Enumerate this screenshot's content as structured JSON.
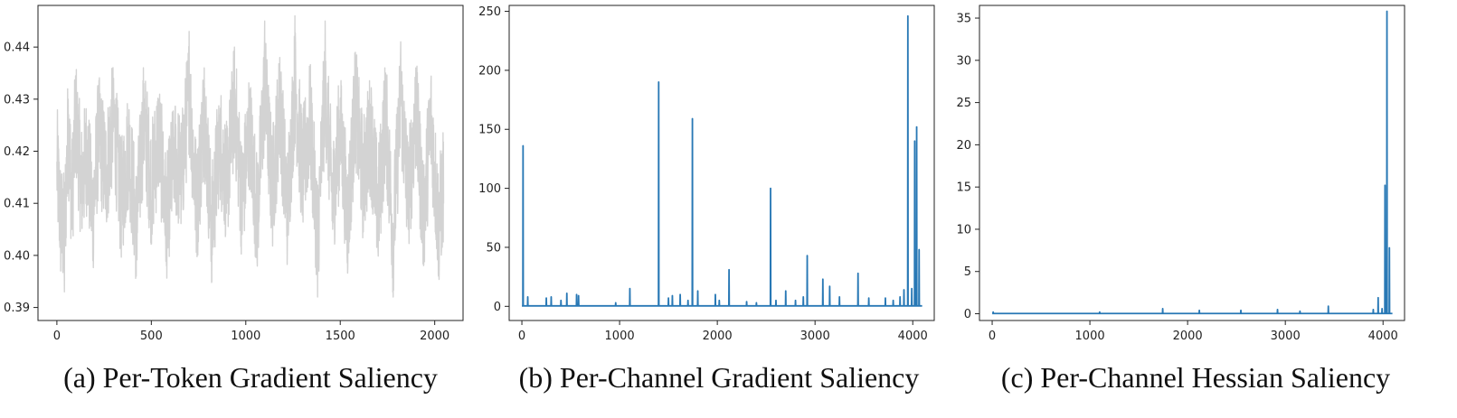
{
  "chart_data": [
    {
      "type": "line",
      "caption": "(a) Per-Token Gradient Saliency",
      "line_color": "#d3d3d3",
      "xlim": [
        -100,
        2150
      ],
      "ylim": [
        0.3875,
        0.448
      ],
      "xticks": [
        0,
        500,
        1000,
        1500,
        2000
      ],
      "yticks": [
        0.39,
        0.4,
        0.41,
        0.42,
        0.43,
        0.44
      ],
      "ytick_labels": [
        "0.39",
        "0.40",
        "0.41",
        "0.42",
        "0.43",
        "0.44"
      ],
      "series": [
        {
          "x_start": 0,
          "x_end": 2048,
          "noise": true,
          "x": [
            0,
            20,
            40,
            60,
            80,
            100,
            130,
            160,
            190,
            220,
            260,
            300,
            340,
            380,
            420,
            460,
            500,
            540,
            580,
            620,
            660,
            700,
            740,
            780,
            820,
            860,
            900,
            940,
            980,
            1020,
            1060,
            1100,
            1140,
            1180,
            1220,
            1260,
            1300,
            1340,
            1380,
            1420,
            1460,
            1500,
            1540,
            1580,
            1620,
            1660,
            1700,
            1740,
            1780,
            1820,
            1860,
            1900,
            1940,
            1980,
            2020,
            2047
          ],
          "values": [
            0.418,
            0.397,
            0.393,
            0.43,
            0.405,
            0.434,
            0.41,
            0.422,
            0.399,
            0.428,
            0.414,
            0.434,
            0.404,
            0.424,
            0.396,
            0.433,
            0.41,
            0.428,
            0.398,
            0.421,
            0.413,
            0.443,
            0.402,
            0.436,
            0.395,
            0.427,
            0.41,
            0.44,
            0.404,
            0.431,
            0.399,
            0.445,
            0.408,
            0.438,
            0.402,
            0.446,
            0.414,
            0.433,
            0.392,
            0.445,
            0.405,
            0.43,
            0.398,
            0.439,
            0.412,
            0.429,
            0.401,
            0.435,
            0.392,
            0.441,
            0.405,
            0.436,
            0.399,
            0.433,
            0.396,
            0.41
          ]
        }
      ]
    },
    {
      "type": "line",
      "caption": "(b) Per-Channel Gradient Saliency",
      "line_color": "#2878b5",
      "xlim": [
        -130,
        4220
      ],
      "ylim": [
        -12,
        255
      ],
      "xticks": [
        0,
        1000,
        2000,
        3000,
        4000
      ],
      "yticks": [
        0,
        50,
        100,
        150,
        200,
        250
      ],
      "ytick_labels": [
        "0",
        "50",
        "100",
        "150",
        "200",
        "250"
      ],
      "series": [
        {
          "x_start": 0,
          "x_end": 4096,
          "baseline": 0.4,
          "spikes": [
            [
              12,
              136
            ],
            [
              60,
              8
            ],
            [
              250,
              7
            ],
            [
              300,
              8
            ],
            [
              400,
              5
            ],
            [
              460,
              11
            ],
            [
              560,
              10
            ],
            [
              580,
              9
            ],
            [
              960,
              3
            ],
            [
              1105,
              15
            ],
            [
              1400,
              190
            ],
            [
              1500,
              7
            ],
            [
              1540,
              9
            ],
            [
              1620,
              10
            ],
            [
              1700,
              5
            ],
            [
              1745,
              159
            ],
            [
              1800,
              13
            ],
            [
              1980,
              10
            ],
            [
              2020,
              5
            ],
            [
              2120,
              31
            ],
            [
              2300,
              4
            ],
            [
              2400,
              3
            ],
            [
              2545,
              100
            ],
            [
              2600,
              5
            ],
            [
              2700,
              13
            ],
            [
              2800,
              5
            ],
            [
              2880,
              8
            ],
            [
              2920,
              43
            ],
            [
              3080,
              23
            ],
            [
              3150,
              17
            ],
            [
              3250,
              8
            ],
            [
              3440,
              28
            ],
            [
              3550,
              7
            ],
            [
              3720,
              7
            ],
            [
              3800,
              5
            ],
            [
              3870,
              8
            ],
            [
              3910,
              14
            ],
            [
              3950,
              246
            ],
            [
              3990,
              15
            ],
            [
              4020,
              140
            ],
            [
              4040,
              152
            ],
            [
              4065,
              48
            ]
          ]
        }
      ]
    },
    {
      "type": "line",
      "caption": "(c) Per-Channel Hessian Saliency",
      "line_color": "#2878b5",
      "xlim": [
        -130,
        4220
      ],
      "ylim": [
        -0.8,
        36.5
      ],
      "xticks": [
        0,
        1000,
        2000,
        3000,
        4000
      ],
      "yticks": [
        0,
        5,
        10,
        15,
        20,
        25,
        30,
        35
      ],
      "ytick_labels": [
        "0",
        "5",
        "10",
        "15",
        "20",
        "25",
        "30",
        "35"
      ],
      "series": [
        {
          "x_start": 0,
          "x_end": 4096,
          "baseline": 0.03,
          "spikes": [
            [
              10,
              0.2
            ],
            [
              1100,
              0.2
            ],
            [
              1745,
              0.6
            ],
            [
              2120,
              0.4
            ],
            [
              2545,
              0.4
            ],
            [
              2920,
              0.5
            ],
            [
              3150,
              0.3
            ],
            [
              3440,
              0.9
            ],
            [
              3900,
              0.5
            ],
            [
              3950,
              1.9
            ],
            [
              3990,
              0.6
            ],
            [
              4020,
              15.2
            ],
            [
              4040,
              35.8
            ],
            [
              4065,
              7.8
            ]
          ]
        }
      ]
    }
  ]
}
